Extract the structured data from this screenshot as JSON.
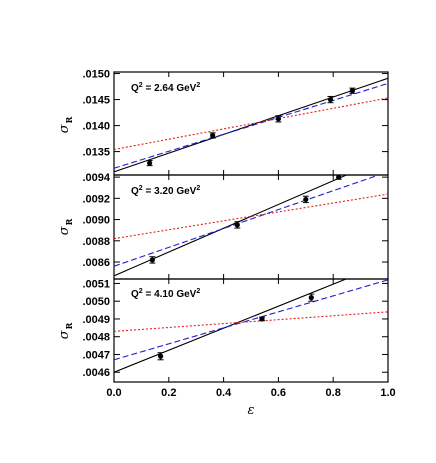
{
  "chart_data": {
    "type": "scatter",
    "xlabel": "ε",
    "xlim": [
      0.0,
      1.0
    ],
    "x_ticks": [
      0.0,
      0.2,
      0.4,
      0.6,
      0.8,
      1.0
    ],
    "x_tick_labels": [
      "0.0",
      "0.2",
      "0.4",
      "0.6",
      "0.8",
      "1.0"
    ],
    "ylabel_symbol": "σ",
    "ylabel_subscript": "R",
    "grid": false,
    "legend": "none",
    "panels": [
      {
        "label": "Q",
        "label_sup": "2",
        "label_value": " = 2.64 GeV",
        "label_unit_sup": "2",
        "ylim": [
          0.01305,
          0.01503
        ],
        "y_ticks": [
          0.0135,
          0.014,
          0.0145,
          0.015
        ],
        "y_tick_labels": [
          ".0135",
          ".0140",
          ".0145",
          ".0150"
        ],
        "points": [
          {
            "x": 0.13,
            "y": 0.01328,
            "err": 5e-05
          },
          {
            "x": 0.36,
            "y": 0.01381,
            "err": 5e-05
          },
          {
            "x": 0.6,
            "y": 0.01413,
            "err": 6e-05
          },
          {
            "x": 0.79,
            "y": 0.0145,
            "err": 6e-05
          },
          {
            "x": 0.87,
            "y": 0.01467,
            "err": 5e-05
          }
        ],
        "fits": [
          {
            "style": "solid",
            "color": "#000000",
            "y0": 0.01311,
            "y1": 0.01491
          },
          {
            "style": "dashed",
            "color": "#1f1fd0",
            "y0": 0.01318,
            "y1": 0.01481
          },
          {
            "style": "dotted",
            "color": "#e0201e",
            "y0": 0.01354,
            "y1": 0.01453
          }
        ]
      },
      {
        "label": "Q",
        "label_sup": "2",
        "label_value": " = 3.20 GeV",
        "label_unit_sup": "2",
        "ylim": [
          0.00844,
          0.00942
        ],
        "y_ticks": [
          0.0086,
          0.0088,
          0.009,
          0.0092,
          0.0094
        ],
        "y_tick_labels": [
          ".0086",
          ".0088",
          ".0090",
          ".0092",
          ".0094"
        ],
        "points": [
          {
            "x": 0.14,
            "y": 0.00862,
            "err": 3e-05
          },
          {
            "x": 0.45,
            "y": 0.00895,
            "err": 3e-05
          },
          {
            "x": 0.7,
            "y": 0.00919,
            "err": 3e-05
          },
          {
            "x": 0.82,
            "y": 0.0094,
            "err": 2e-05
          }
        ],
        "fits": [
          {
            "style": "solid",
            "color": "#000000",
            "y0": 0.00847,
            "y1": 0.00959
          },
          {
            "style": "dashed",
            "color": "#1f1fd0",
            "y0": 0.00856,
            "y1": 0.00945
          },
          {
            "style": "dotted",
            "color": "#e0201e",
            "y0": 0.00882,
            "y1": 0.00924
          }
        ]
      },
      {
        "label": "Q",
        "label_sup": "2",
        "label_value": " = 4.10 GeV",
        "label_unit_sup": "2",
        "ylim": [
          0.004545,
          0.005125
        ],
        "y_ticks": [
          0.0046,
          0.0047,
          0.0048,
          0.0049,
          0.005,
          0.0051
        ],
        "y_tick_labels": [
          ".0046",
          ".0047",
          ".0048",
          ".0049",
          ".0050",
          ".0051"
        ],
        "points": [
          {
            "x": 0.17,
            "y": 0.00469,
            "err": 2e-05
          },
          {
            "x": 0.54,
            "y": 0.0049,
            "err": 1e-05
          },
          {
            "x": 0.72,
            "y": 0.00502,
            "err": 2e-05
          }
        ],
        "fits": [
          {
            "style": "solid",
            "color": "#000000",
            "y0": 0.0046,
            "y1": 0.00522
          },
          {
            "style": "dashed",
            "color": "#1f1fd0",
            "y0": 0.00467,
            "y1": 0.00512
          },
          {
            "style": "dotted",
            "color": "#e0201e",
            "y0": 0.00483,
            "y1": 0.00494
          }
        ]
      }
    ]
  }
}
